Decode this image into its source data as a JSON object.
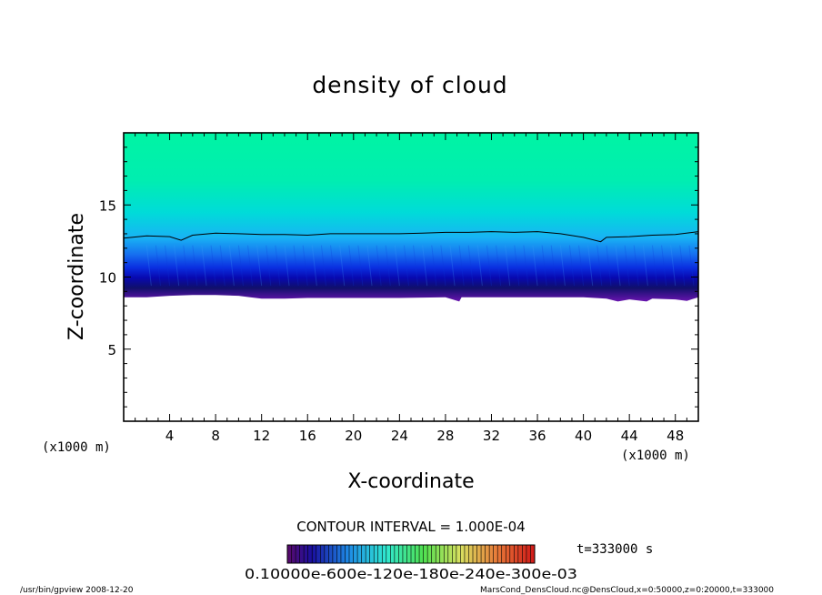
{
  "chart_data": {
    "type": "contour",
    "title": "density of cloud",
    "xlabel": "X-coordinate",
    "ylabel": "Z-coordinate",
    "x_unit": "(x1000 m)",
    "xlim": [
      0,
      50
    ],
    "ylim": [
      0,
      20
    ],
    "x_ticks": [
      4,
      8,
      12,
      16,
      20,
      24,
      28,
      32,
      36,
      40,
      44,
      48
    ],
    "y_ticks": [
      5,
      10,
      15
    ],
    "contour_interval_text": "CONTOUR INTERVAL = 1.000E-04",
    "time_text": "t=333000 s",
    "colorbar_labels_text": "0.10000e-600e-120e-180e-240e-300e-03",
    "contour_line_z": [
      [
        0,
        12.7
      ],
      [
        2,
        12.85
      ],
      [
        4,
        12.8
      ],
      [
        5,
        12.55
      ],
      [
        6,
        12.9
      ],
      [
        8,
        13.05
      ],
      [
        10,
        13.0
      ],
      [
        12,
        12.95
      ],
      [
        14,
        12.95
      ],
      [
        16,
        12.9
      ],
      [
        18,
        13.0
      ],
      [
        20,
        13.0
      ],
      [
        22,
        13.0
      ],
      [
        24,
        13.0
      ],
      [
        26,
        13.05
      ],
      [
        28,
        13.1
      ],
      [
        30,
        13.1
      ],
      [
        32,
        13.15
      ],
      [
        34,
        13.1
      ],
      [
        36,
        13.15
      ],
      [
        38,
        13.0
      ],
      [
        40,
        12.75
      ],
      [
        41.5,
        12.45
      ],
      [
        42,
        12.75
      ],
      [
        44,
        12.8
      ],
      [
        46,
        12.9
      ],
      [
        48,
        12.95
      ],
      [
        50,
        13.15
      ]
    ],
    "cloud_base_z": [
      [
        0,
        8.6
      ],
      [
        2,
        8.6
      ],
      [
        4,
        8.7
      ],
      [
        6,
        8.75
      ],
      [
        8,
        8.75
      ],
      [
        10,
        8.7
      ],
      [
        11,
        8.6
      ],
      [
        12,
        8.5
      ],
      [
        14,
        8.5
      ],
      [
        16,
        8.55
      ],
      [
        20,
        8.55
      ],
      [
        24,
        8.55
      ],
      [
        28,
        8.6
      ],
      [
        29.2,
        8.3
      ],
      [
        29.4,
        8.6
      ],
      [
        32,
        8.6
      ],
      [
        36,
        8.6
      ],
      [
        40,
        8.6
      ],
      [
        42,
        8.5
      ],
      [
        43,
        8.3
      ],
      [
        44,
        8.45
      ],
      [
        45.5,
        8.3
      ],
      [
        46,
        8.5
      ],
      [
        48,
        8.45
      ],
      [
        49,
        8.35
      ],
      [
        50,
        8.6
      ]
    ]
  },
  "footer": {
    "left": "/usr/bin/gpview   2008-12-20",
    "right": "MarsCond_DensCloud.nc@DensCloud,x=0:50000,z=0:20000,t=333000"
  },
  "colors": {
    "top": "#00f0a0",
    "band_light": "#19c8f0",
    "band_mid": "#0a5ef0",
    "band_dark": "#0808c8",
    "deep": "#0a0a60",
    "base": "#7a10b4"
  }
}
